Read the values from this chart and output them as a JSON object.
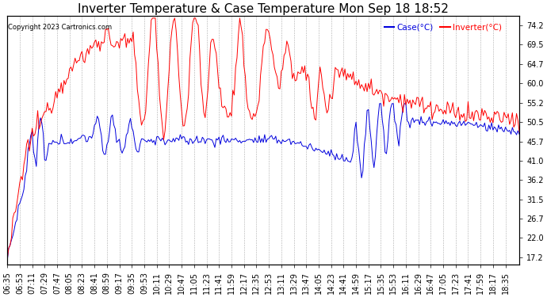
{
  "title": "Inverter Temperature & Case Temperature Mon Sep 18 18:52",
  "copyright": "Copyright 2023 Cartronics.com",
  "legend_case": "Case(°C)",
  "legend_inverter": "Inverter(°C)",
  "case_color": "#0000dd",
  "inverter_color": "#ff0000",
  "background_color": "#ffffff",
  "grid_color": "#999999",
  "yticks": [
    17.2,
    22.0,
    26.7,
    31.5,
    36.2,
    41.0,
    45.7,
    50.5,
    55.2,
    60.0,
    64.7,
    69.5,
    74.2
  ],
  "ymin": 15.5,
  "ymax": 76.5,
  "title_fontsize": 11,
  "tick_fontsize": 7
}
